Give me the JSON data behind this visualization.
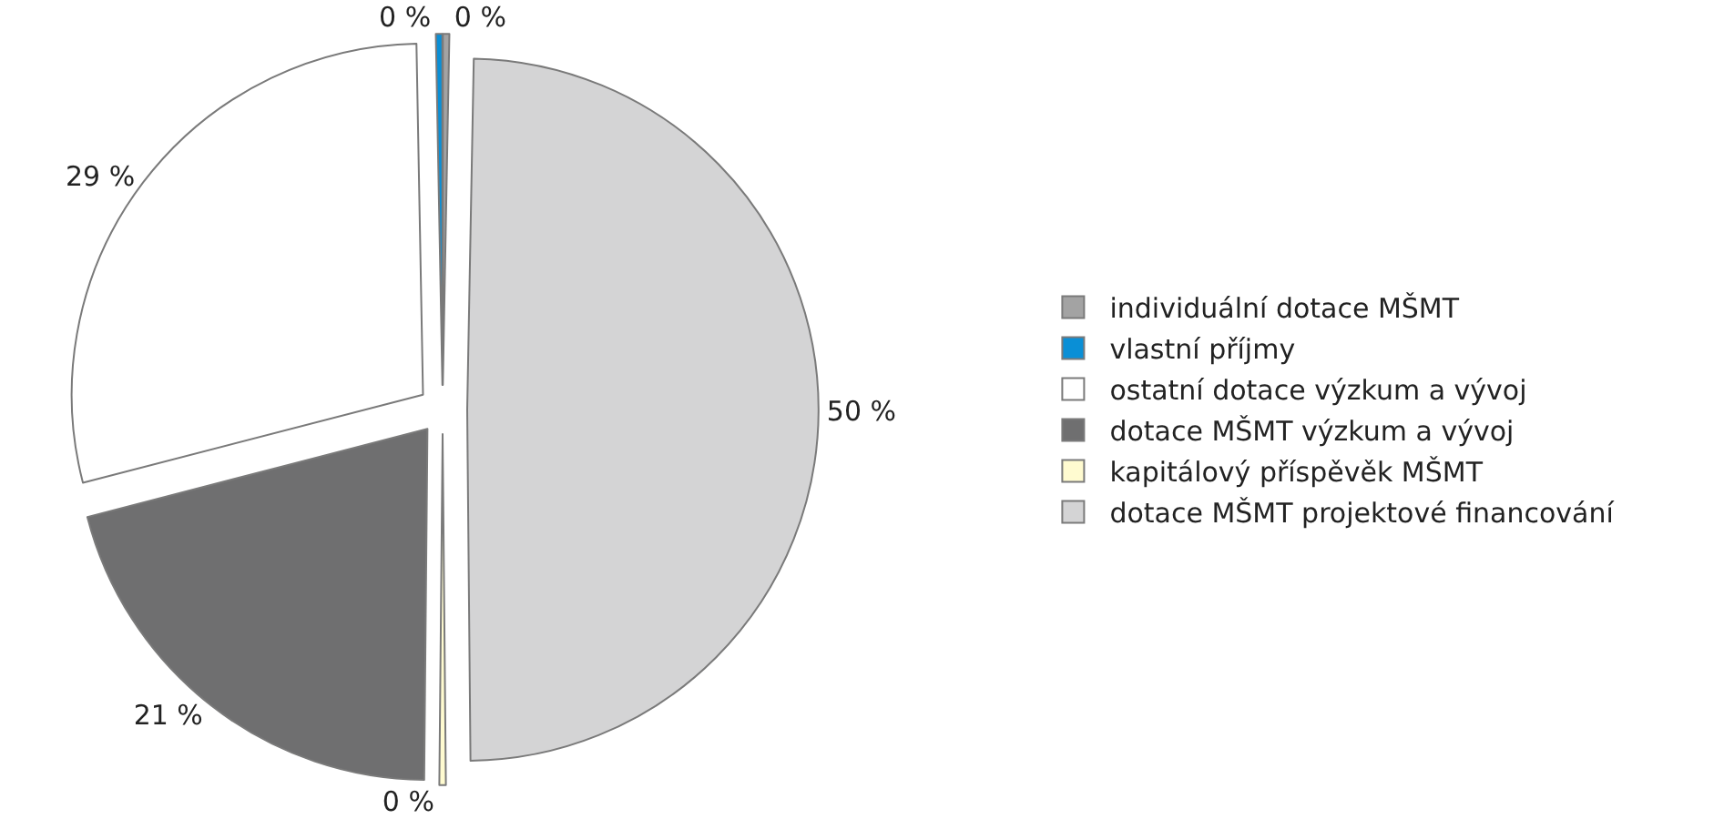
{
  "chart_data": {
    "type": "pie",
    "categories": [
      "individuální dotace MŠMT",
      "vlastní příjmy",
      "ostatní dotace výzkum a vývoj",
      "dotace MŠMT výzkum a vývoj",
      "kapitálový příspěvěk MŠMT",
      "dotace MŠMT projektové financování"
    ],
    "values": [
      0.3,
      0.3,
      29,
      21,
      0.3,
      50
    ],
    "value_labels": [
      "0 %",
      "0 %",
      "29 %",
      "21 %",
      "0 %",
      "50 %"
    ],
    "colors": [
      "#a3a3a3",
      "#0a8fd6",
      "#ffffff",
      "#6f6f70",
      "#fffbd0",
      "#d4d4d5"
    ],
    "legend": "right"
  }
}
